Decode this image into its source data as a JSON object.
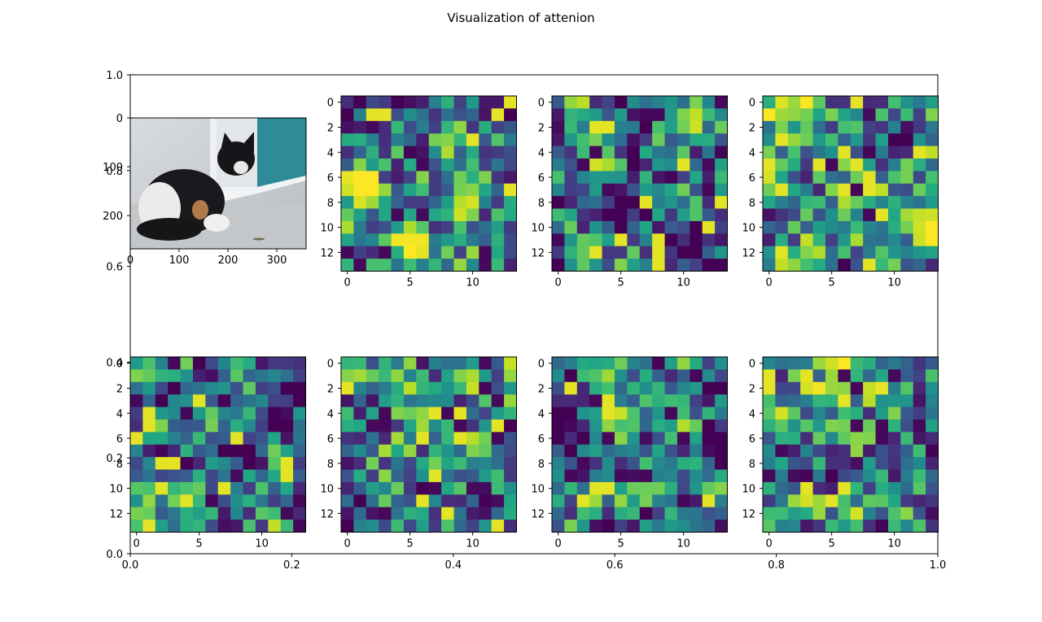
{
  "figure": {
    "title": "Visualization of attenion"
  },
  "chart_data": [
    {
      "type": "axes",
      "role": "background-axes",
      "xlim": [
        0.0,
        1.0
      ],
      "ylim": [
        0.0,
        1.0
      ],
      "x_ticks": [
        0.0,
        0.2,
        0.4,
        0.6,
        0.8,
        1.0
      ],
      "x_tick_labels": [
        "0.0",
        "0.2",
        "0.4",
        "0.6",
        "0.8",
        "1.0"
      ],
      "y_ticks": [
        0.0,
        0.2,
        0.4,
        0.6,
        0.8,
        1.0
      ],
      "y_tick_labels": [
        "0.0",
        "0.2",
        "0.4",
        "0.6",
        "0.8",
        "1.0"
      ]
    },
    {
      "type": "image",
      "subject": "kitten photo",
      "xlim": [
        0,
        360
      ],
      "ylim": [
        268,
        0
      ],
      "x_ticks": [
        0,
        100,
        200,
        300
      ],
      "x_tick_labels": [
        "0",
        "100",
        "200",
        "300"
      ],
      "y_ticks": [
        0,
        100,
        200
      ],
      "y_tick_labels": [
        "0",
        "100",
        "200"
      ]
    },
    {
      "type": "heatmap",
      "colormap": "viridis",
      "n_maps": 7,
      "rows": 14,
      "cols": 14,
      "x_ticks": [
        0,
        5,
        10
      ],
      "x_tick_labels": [
        "0",
        "5",
        "10"
      ],
      "y_ticks": [
        0,
        2,
        4,
        6,
        8,
        10,
        12
      ],
      "y_tick_labels": [
        "0",
        "2",
        "4",
        "6",
        "8",
        "10",
        "12"
      ]
    }
  ]
}
